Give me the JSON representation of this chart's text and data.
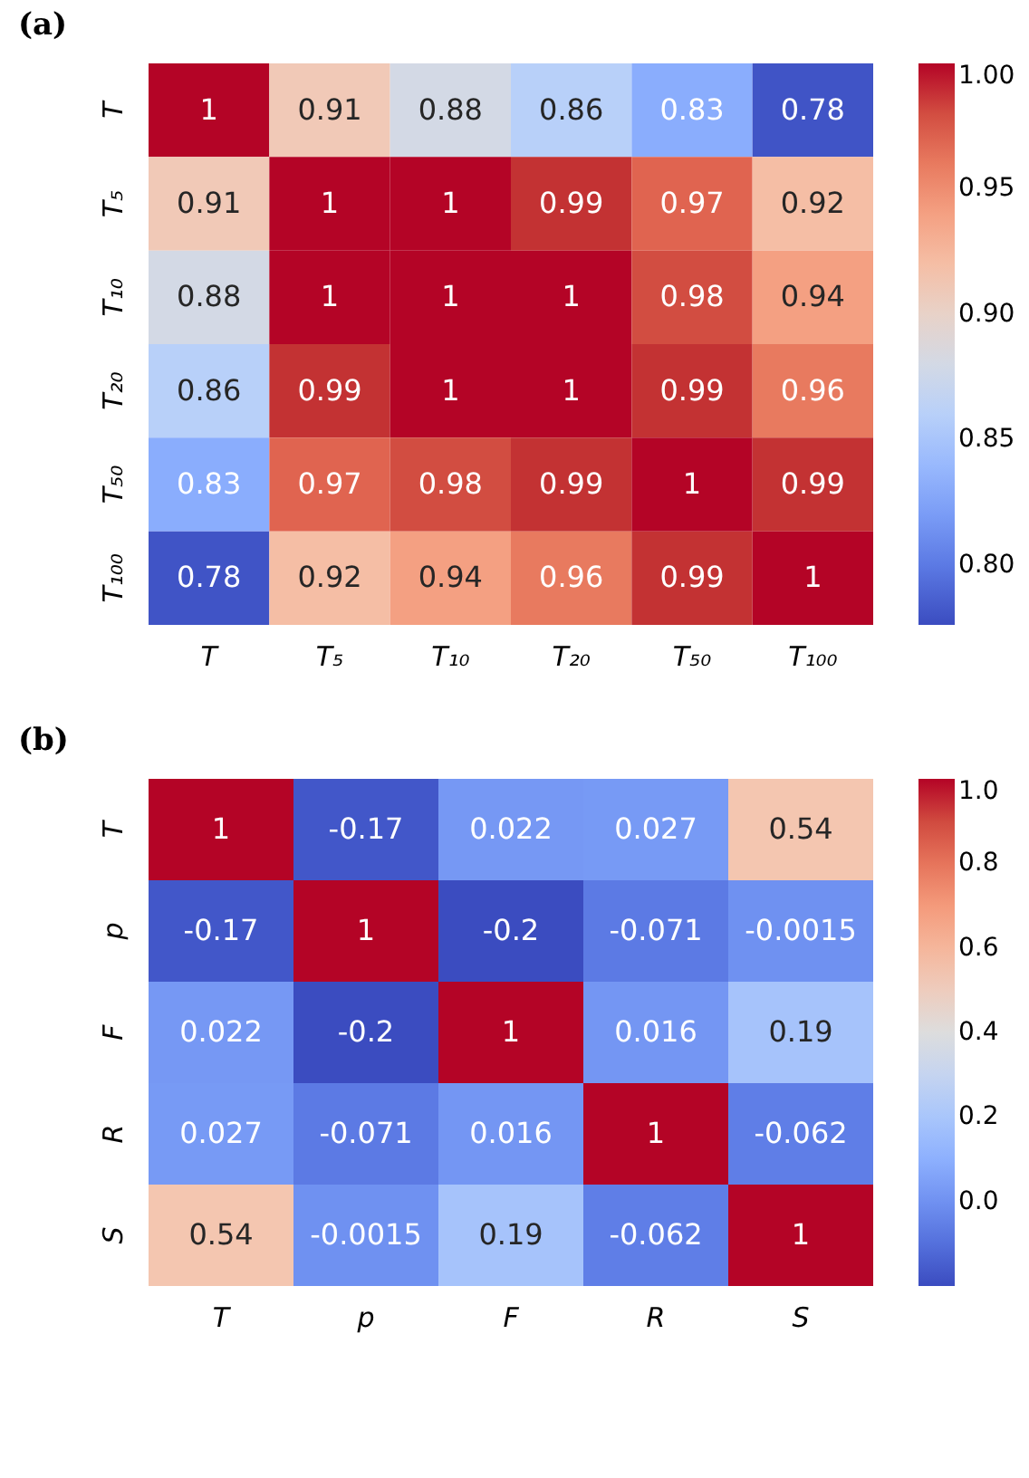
{
  "chart_data": [
    {
      "type": "heatmap",
      "title": "(a)",
      "categories": [
        "T",
        "T₅",
        "T₁₀",
        "T₂₀",
        "T₅₀",
        "T₁₀₀"
      ],
      "y_categories": [
        "T",
        "T₅",
        "T₁₀",
        "T₂₀",
        "T₅₀",
        "T₁₀₀"
      ],
      "cells": [
        [
          1,
          0.91,
          0.88,
          0.86,
          0.83,
          0.78
        ],
        [
          0.91,
          1,
          1,
          0.99,
          0.97,
          0.92
        ],
        [
          0.88,
          1,
          1,
          1,
          0.98,
          0.94
        ],
        [
          0.86,
          0.99,
          1,
          1,
          0.99,
          0.96
        ],
        [
          0.83,
          0.97,
          0.98,
          0.99,
          1,
          0.99
        ],
        [
          0.78,
          0.92,
          0.94,
          0.96,
          0.99,
          1
        ]
      ],
      "clim": [
        0.776,
        1.0
      ],
      "cticks": [
        {
          "value": 0.8,
          "label": "0.80"
        },
        0.85,
        {
          "value": 0.9,
          "label": "0.90"
        },
        0.95,
        {
          "value": 1.0,
          "label": "1.00"
        }
      ],
      "data_labels": true
    },
    {
      "type": "heatmap",
      "title": "(b)",
      "categories": [
        "T",
        "p",
        "F",
        "R",
        "S"
      ],
      "y_categories": [
        "T",
        "p",
        "F",
        "R",
        "S"
      ],
      "cells": [
        [
          1,
          -0.17,
          0.022,
          0.027,
          0.54
        ],
        [
          -0.17,
          1,
          -0.2,
          -0.071,
          -0.0015
        ],
        [
          0.022,
          -0.2,
          1,
          0.016,
          0.19
        ],
        [
          0.027,
          -0.071,
          0.016,
          1,
          -0.062
        ],
        [
          0.54,
          -0.0015,
          0.19,
          -0.062,
          1
        ]
      ],
      "clim": [
        -0.2,
        1.0
      ],
      "cticks": [
        {
          "value": 0.0,
          "label": "0.0"
        },
        0.2,
        0.4,
        0.6,
        0.8,
        {
          "value": 1.0,
          "label": "1.0"
        }
      ],
      "data_labels": true
    }
  ]
}
